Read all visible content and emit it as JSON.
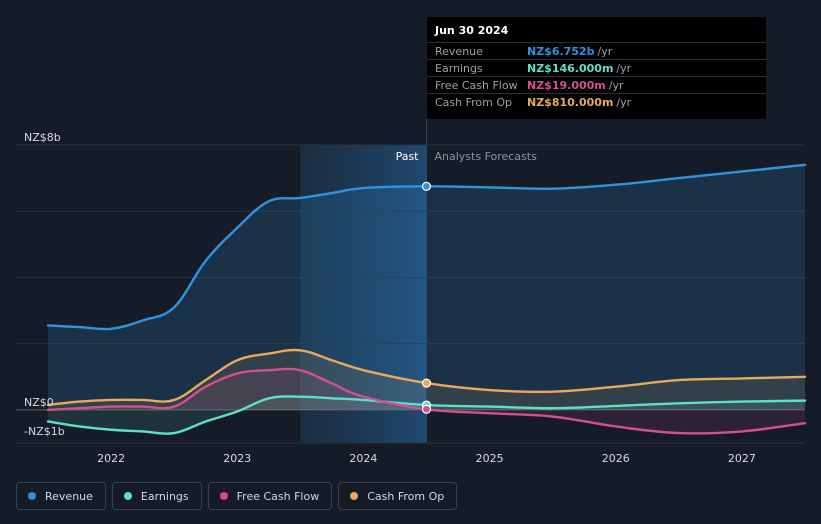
{
  "tooltip": {
    "date": "Jun 30 2024",
    "rows": [
      {
        "label": "Revenue",
        "value": "NZ$6.752b",
        "unit": "/yr",
        "color": "#2f93e0"
      },
      {
        "label": "Earnings",
        "value": "NZ$146.000m",
        "unit": "/yr",
        "color": "#5ce0c8"
      },
      {
        "label": "Free Cash Flow",
        "value": "NZ$19.000m",
        "unit": "/yr",
        "color": "#d44f8e"
      },
      {
        "label": "Cash From Op",
        "value": "NZ$810.000m",
        "unit": "/yr",
        "color": "#e8a95a"
      }
    ]
  },
  "chart_data": {
    "type": "line",
    "y_unit": "NZ$ billions",
    "ylim": [
      -1,
      8
    ],
    "y_tick_labels": [
      {
        "value": 8,
        "label": "NZ$8b"
      },
      {
        "value": 0,
        "label": "NZ$0"
      },
      {
        "value": -1,
        "label": "-NZ$1b"
      }
    ],
    "xlim": [
      2021.5,
      2027.5
    ],
    "x_ticks": [
      {
        "value": 2022,
        "label": "2022"
      },
      {
        "value": 2023,
        "label": "2023"
      },
      {
        "value": 2024,
        "label": "2024"
      },
      {
        "value": 2025,
        "label": "2025"
      },
      {
        "value": 2026,
        "label": "2026"
      },
      {
        "value": 2027,
        "label": "2027"
      }
    ],
    "past_label": "Past",
    "forecast_label": "Analysts Forecasts",
    "past_region_start": 2023.5,
    "divider_x": 2024.5,
    "series": [
      {
        "name": "Revenue",
        "color": "#2f93e0",
        "fill": true,
        "x": [
          2021.5,
          2021.75,
          2022,
          2022.25,
          2022.5,
          2022.75,
          2023,
          2023.25,
          2023.5,
          2023.75,
          2024,
          2024.5,
          2025,
          2025.5,
          2026,
          2026.5,
          2027,
          2027.5
        ],
        "y": [
          2.55,
          2.5,
          2.45,
          2.7,
          3.1,
          4.5,
          5.5,
          6.3,
          6.4,
          6.55,
          6.7,
          6.752,
          6.72,
          6.68,
          6.8,
          7.0,
          7.2,
          7.4
        ]
      },
      {
        "name": "Earnings",
        "color": "#5ce0c8",
        "fill": true,
        "x": [
          2021.5,
          2021.75,
          2022,
          2022.25,
          2022.5,
          2022.75,
          2023,
          2023.25,
          2023.5,
          2023.75,
          2024,
          2024.5,
          2025,
          2025.5,
          2026,
          2026.5,
          2027,
          2027.5
        ],
        "y": [
          -0.35,
          -0.5,
          -0.6,
          -0.65,
          -0.7,
          -0.35,
          -0.05,
          0.35,
          0.4,
          0.35,
          0.3,
          0.146,
          0.1,
          0.05,
          0.12,
          0.2,
          0.25,
          0.28
        ]
      },
      {
        "name": "Free Cash Flow",
        "color": "#d44f8e",
        "fill": true,
        "x": [
          2021.5,
          2021.75,
          2022,
          2022.25,
          2022.5,
          2022.75,
          2023,
          2023.25,
          2023.5,
          2023.75,
          2024,
          2024.5,
          2025,
          2025.5,
          2026,
          2026.5,
          2027,
          2027.5
        ],
        "y": [
          0.0,
          0.05,
          0.1,
          0.1,
          0.1,
          0.7,
          1.1,
          1.2,
          1.2,
          0.8,
          0.4,
          0.019,
          -0.1,
          -0.2,
          -0.5,
          -0.7,
          -0.65,
          -0.4
        ]
      },
      {
        "name": "Cash From Op",
        "color": "#e8a95a",
        "fill": true,
        "x": [
          2021.5,
          2021.75,
          2022,
          2022.25,
          2022.5,
          2022.75,
          2023,
          2023.25,
          2023.5,
          2023.75,
          2024,
          2024.5,
          2025,
          2025.5,
          2026,
          2026.5,
          2027,
          2027.5
        ],
        "y": [
          0.15,
          0.25,
          0.3,
          0.3,
          0.3,
          0.9,
          1.5,
          1.7,
          1.8,
          1.5,
          1.2,
          0.81,
          0.6,
          0.55,
          0.7,
          0.9,
          0.95,
          1.0
        ]
      }
    ]
  },
  "legend": [
    {
      "label": "Revenue",
      "color": "#2f93e0"
    },
    {
      "label": "Earnings",
      "color": "#5ce0c8"
    },
    {
      "label": "Free Cash Flow",
      "color": "#d44f8e"
    },
    {
      "label": "Cash From Op",
      "color": "#e8a95a"
    }
  ]
}
